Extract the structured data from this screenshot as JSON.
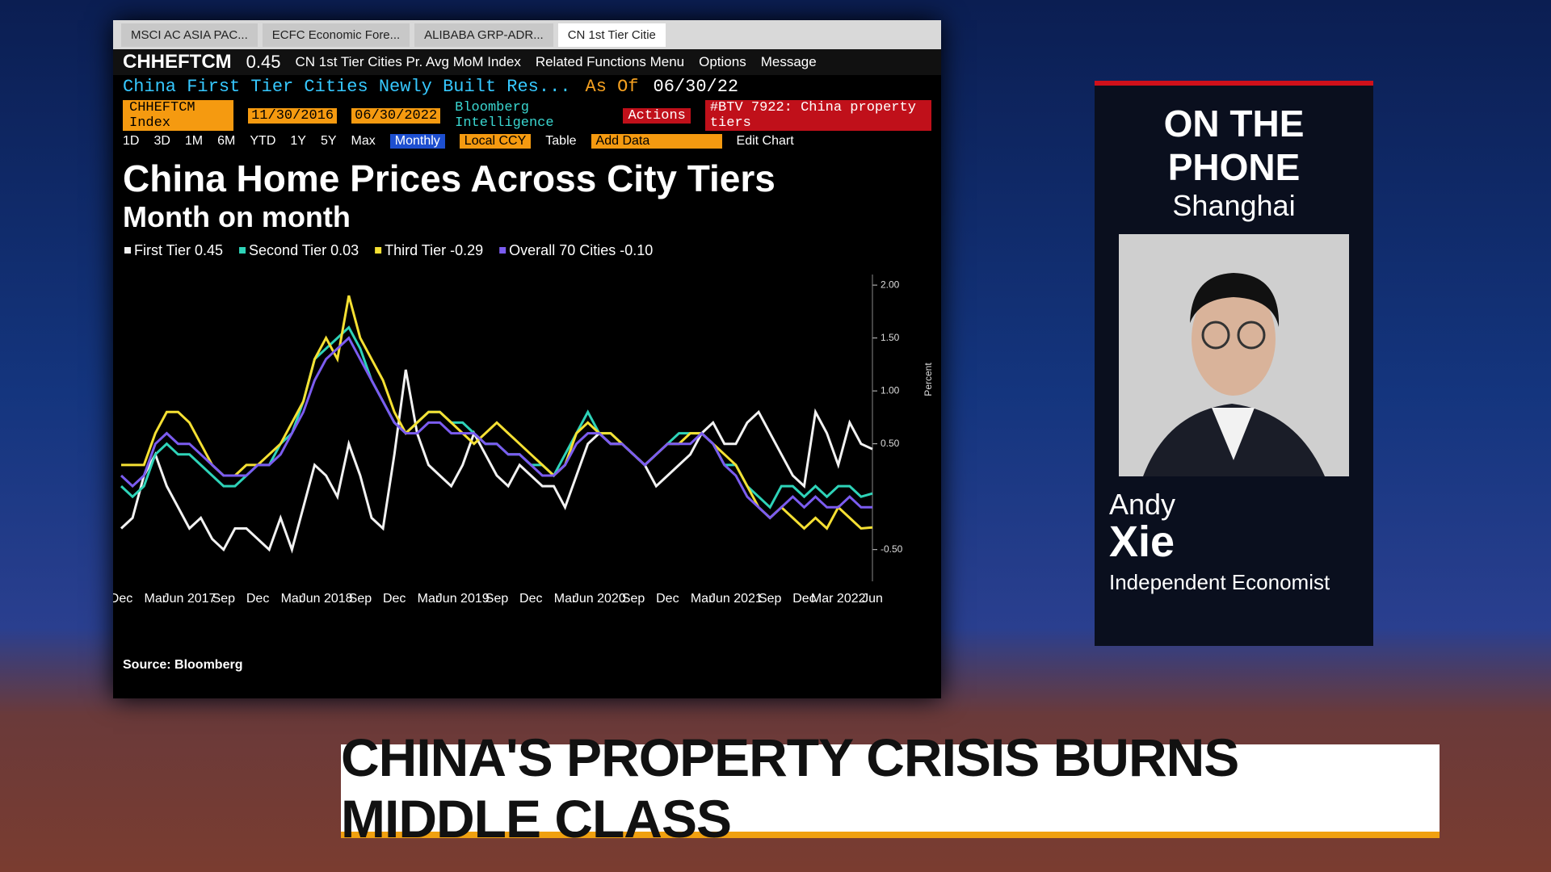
{
  "screen": {
    "tabs": [
      "MSCI AC ASIA PAC...",
      "ECFC Economic Fore...",
      "ALIBABA GRP-ADR...",
      "CN 1st Tier Citie"
    ],
    "ticker": "CHHEFTCM",
    "last": "0.45",
    "security_name": "CN 1st Tier Cities Pr. Avg MoM Index",
    "related": "Related Functions Menu",
    "options": "Options",
    "message": "Message",
    "long_name": "China First Tier Cities Newly Built Res...",
    "as_of": "As Of",
    "as_of_date": "06/30/22",
    "index": "CHHEFTCM Index",
    "start_date": "11/30/2016",
    "end_date": "06/30/2022",
    "bi": "Bloomberg Intelligence",
    "actions": "Actions",
    "btv": "#BTV 7922: China property tiers",
    "periods": [
      "1D",
      "3D",
      "1M",
      "6M",
      "YTD",
      "1Y",
      "5Y",
      "Max"
    ],
    "frequency": "Monthly",
    "currency": "Local CCY",
    "table": "Table",
    "add_data": "Add Data",
    "edit_chart": "Edit Chart",
    "source": "Source: Bloomberg"
  },
  "guest": {
    "banner": "ON THE PHONE",
    "city": "Shanghai",
    "first_name": "Andy",
    "last_name": "Xie",
    "role": "Independent Economist"
  },
  "headline": "CHINA'S PROPERTY CRISIS BURNS MIDDLE CLASS",
  "chart_data": {
    "type": "line",
    "title": "China Home Prices Across City Tiers",
    "subtitle": "Month on month",
    "y_label": "Percent",
    "categories": [
      "Dec",
      null,
      null,
      "Mar",
      null,
      null,
      "Jun 2017",
      null,
      null,
      "Sep",
      null,
      null,
      "Dec",
      null,
      null,
      "Mar",
      null,
      null,
      "Jun 2018",
      null,
      null,
      "Sep",
      null,
      null,
      "Dec",
      null,
      null,
      "Mar",
      null,
      null,
      "Jun 2019",
      null,
      null,
      "Sep",
      null,
      null,
      "Dec",
      null,
      null,
      "Mar",
      null,
      null,
      "Jun 2020",
      null,
      null,
      "Sep",
      null,
      null,
      "Dec",
      null,
      null,
      "Mar",
      null,
      null,
      "Jun 2021",
      null,
      null,
      "Sep",
      null,
      null,
      "Dec",
      null,
      null,
      "Mar 2022",
      null,
      null,
      "Jun"
    ],
    "ylim": [
      -0.8,
      2.1
    ],
    "yticks": [
      {
        "value": 2,
        "label": "2.00"
      },
      {
        "value": 1.5,
        "label": "1.50"
      },
      {
        "value": 1,
        "label": "1.00"
      },
      {
        "value": 0.5,
        "label": "0.50"
      },
      {
        "value": -0.5,
        "label": "-0.50"
      }
    ],
    "series": [
      {
        "name": "First Tier 0.45",
        "color": "#f2f2f2",
        "values": [
          -0.3,
          -0.2,
          0.2,
          0.4,
          0.1,
          -0.1,
          -0.3,
          -0.2,
          -0.4,
          -0.5,
          -0.3,
          -0.3,
          -0.4,
          -0.5,
          -0.2,
          -0.5,
          -0.1,
          0.3,
          0.2,
          0.0,
          0.5,
          0.2,
          -0.2,
          -0.3,
          0.4,
          1.2,
          0.6,
          0.3,
          0.2,
          0.1,
          0.3,
          0.6,
          0.4,
          0.2,
          0.1,
          0.3,
          0.2,
          0.1,
          0.1,
          -0.1,
          0.2,
          0.5,
          0.6,
          0.5,
          0.5,
          0.4,
          0.3,
          0.1,
          0.2,
          0.3,
          0.4,
          0.6,
          0.7,
          0.5,
          0.5,
          0.7,
          0.8,
          0.6,
          0.4,
          0.2,
          0.1,
          0.8,
          0.6,
          0.3,
          0.7,
          0.5,
          0.45
        ]
      },
      {
        "name": "Second Tier 0.03",
        "color": "#2ed3b8",
        "values": [
          0.1,
          0.0,
          0.1,
          0.4,
          0.5,
          0.4,
          0.4,
          0.3,
          0.2,
          0.1,
          0.1,
          0.2,
          0.3,
          0.3,
          0.5,
          0.6,
          0.9,
          1.3,
          1.4,
          1.5,
          1.6,
          1.4,
          1.1,
          0.9,
          0.7,
          0.6,
          0.7,
          0.8,
          0.8,
          0.7,
          0.7,
          0.6,
          0.5,
          0.5,
          0.4,
          0.4,
          0.3,
          0.3,
          0.2,
          0.4,
          0.6,
          0.8,
          0.6,
          0.6,
          0.5,
          0.4,
          0.3,
          0.4,
          0.5,
          0.6,
          0.6,
          0.6,
          0.5,
          0.3,
          0.3,
          0.1,
          0.0,
          -0.1,
          0.1,
          0.1,
          0.0,
          0.1,
          0.0,
          0.1,
          0.1,
          0.0,
          0.03
        ]
      },
      {
        "name": "Third Tier -0.29",
        "color": "#f5e033",
        "values": [
          0.3,
          0.3,
          0.3,
          0.6,
          0.8,
          0.8,
          0.7,
          0.5,
          0.3,
          0.2,
          0.2,
          0.3,
          0.3,
          0.4,
          0.5,
          0.7,
          0.9,
          1.3,
          1.5,
          1.3,
          1.9,
          1.5,
          1.3,
          1.1,
          0.8,
          0.6,
          0.7,
          0.8,
          0.8,
          0.7,
          0.6,
          0.5,
          0.6,
          0.7,
          0.6,
          0.5,
          0.4,
          0.3,
          0.2,
          0.3,
          0.6,
          0.7,
          0.6,
          0.6,
          0.5,
          0.4,
          0.3,
          0.4,
          0.5,
          0.5,
          0.6,
          0.6,
          0.5,
          0.4,
          0.3,
          0.1,
          -0.1,
          -0.2,
          -0.1,
          -0.2,
          -0.3,
          -0.2,
          -0.3,
          -0.1,
          -0.2,
          -0.3,
          -0.29
        ]
      },
      {
        "name": "Overall 70 Cities -0.10",
        "color": "#7b5cf0",
        "values": [
          0.2,
          0.1,
          0.2,
          0.5,
          0.6,
          0.5,
          0.5,
          0.4,
          0.3,
          0.2,
          0.2,
          0.2,
          0.3,
          0.3,
          0.4,
          0.6,
          0.8,
          1.1,
          1.3,
          1.4,
          1.5,
          1.3,
          1.1,
          0.9,
          0.7,
          0.6,
          0.6,
          0.7,
          0.7,
          0.6,
          0.6,
          0.6,
          0.5,
          0.5,
          0.4,
          0.4,
          0.3,
          0.2,
          0.2,
          0.3,
          0.5,
          0.6,
          0.6,
          0.5,
          0.5,
          0.4,
          0.3,
          0.4,
          0.5,
          0.5,
          0.5,
          0.6,
          0.5,
          0.3,
          0.2,
          0.0,
          -0.1,
          -0.2,
          -0.1,
          0.0,
          -0.1,
          0.0,
          -0.1,
          -0.1,
          0.0,
          -0.1,
          -0.1
        ]
      }
    ]
  }
}
